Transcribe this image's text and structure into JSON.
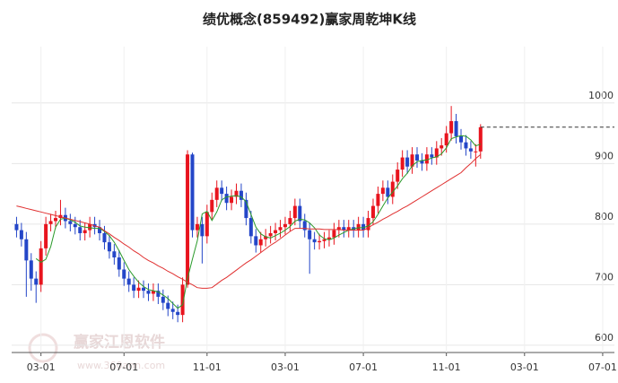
{
  "chart_data": {
    "type": "candlestick",
    "title": "绩优概念(859492)赢家周乾坤K线",
    "watermark": "赢家江恩软件",
    "watermark_url": "www.360ann.com",
    "up_color": "#e8141e",
    "down_color": "#2446c8",
    "grid": true,
    "ylim": [
      588,
      1093
    ],
    "yticks": [
      600,
      700,
      800,
      900,
      1000
    ],
    "xlim": [
      -1,
      122.4
    ],
    "xticks": [
      {
        "value": 5,
        "label": "03-01"
      },
      {
        "value": 22,
        "label": "07-01"
      },
      {
        "value": 39,
        "label": "11-01"
      },
      {
        "value": 55,
        "label": "03-01"
      },
      {
        "value": 71,
        "label": "07-01"
      },
      {
        "value": 88,
        "label": "11-01"
      },
      {
        "value": 104,
        "label": "03-01"
      },
      {
        "value": 120,
        "label": "07-01"
      }
    ],
    "open": [
      800,
      790,
      775,
      740,
      710,
      700,
      760,
      800,
      805,
      810,
      815,
      805,
      800,
      795,
      785,
      790,
      800,
      795,
      785,
      770,
      755,
      745,
      725,
      710,
      700,
      690,
      695,
      690,
      685,
      690,
      680,
      670,
      660,
      655,
      650,
      700,
      915,
      790,
      800,
      780,
      820,
      840,
      860,
      850,
      835,
      845,
      855,
      840,
      810,
      780,
      765,
      775,
      780,
      785,
      790,
      795,
      800,
      810,
      830,
      805,
      790,
      775,
      770,
      772,
      775,
      778,
      790,
      795,
      790,
      795,
      790,
      800,
      790,
      810,
      830,
      850,
      860,
      845,
      870,
      890,
      910,
      895,
      915,
      905,
      900,
      915,
      910,
      925,
      930,
      950,
      970,
      945,
      935,
      925,
      920,
      920
    ],
    "close": [
      790,
      775,
      740,
      710,
      700,
      760,
      800,
      805,
      810,
      815,
      805,
      800,
      795,
      785,
      790,
      800,
      795,
      785,
      770,
      755,
      745,
      725,
      710,
      700,
      690,
      695,
      690,
      685,
      690,
      680,
      670,
      660,
      655,
      650,
      700,
      915,
      790,
      800,
      780,
      820,
      840,
      860,
      850,
      835,
      845,
      855,
      840,
      810,
      780,
      765,
      775,
      780,
      785,
      790,
      795,
      800,
      810,
      830,
      805,
      790,
      775,
      770,
      772,
      775,
      778,
      790,
      795,
      790,
      795,
      790,
      800,
      790,
      810,
      830,
      850,
      860,
      845,
      870,
      890,
      910,
      895,
      915,
      905,
      900,
      915,
      910,
      925,
      930,
      950,
      970,
      945,
      935,
      925,
      920,
      920,
      960
    ],
    "high": [
      812,
      802,
      787,
      752,
      722,
      772,
      812,
      817,
      822,
      840,
      827,
      817,
      812,
      807,
      802,
      812,
      812,
      807,
      797,
      782,
      767,
      757,
      737,
      722,
      712,
      707,
      707,
      702,
      702,
      702,
      692,
      682,
      672,
      667,
      712,
      922,
      918,
      812,
      812,
      832,
      852,
      872,
      872,
      862,
      857,
      867,
      867,
      852,
      822,
      792,
      787,
      792,
      797,
      802,
      807,
      812,
      822,
      842,
      842,
      817,
      802,
      787,
      784,
      787,
      790,
      802,
      807,
      807,
      807,
      807,
      812,
      812,
      822,
      842,
      862,
      872,
      872,
      882,
      902,
      922,
      922,
      927,
      927,
      917,
      927,
      927,
      937,
      942,
      962,
      995,
      982,
      957,
      947,
      937,
      932,
      965
    ],
    "low": [
      778,
      763,
      680,
      690,
      670,
      688,
      748,
      788,
      793,
      798,
      793,
      788,
      783,
      773,
      773,
      778,
      783,
      773,
      758,
      743,
      733,
      713,
      698,
      688,
      678,
      678,
      678,
      673,
      673,
      668,
      658,
      648,
      643,
      638,
      638,
      695,
      778,
      778,
      735,
      768,
      808,
      828,
      838,
      823,
      823,
      833,
      828,
      798,
      768,
      753,
      753,
      763,
      768,
      773,
      778,
      783,
      788,
      798,
      793,
      778,
      718,
      758,
      758,
      760,
      763,
      766,
      778,
      778,
      778,
      778,
      778,
      778,
      778,
      798,
      818,
      838,
      833,
      833,
      858,
      878,
      883,
      883,
      893,
      888,
      888,
      898,
      898,
      913,
      918,
      938,
      933,
      923,
      913,
      908,
      895,
      908
    ],
    "series": [
      {
        "color": "#2a9a2a",
        "values": [
          null,
          null,
          null,
          null,
          743,
          737,
          742,
          763,
          795,
          808,
          810,
          807,
          803,
          797,
          795,
          794,
          793,
          793,
          788,
          781,
          770,
          756,
          740,
          725,
          714,
          704,
          697,
          692,
          690,
          688,
          683,
          677,
          669,
          661,
          667,
          710,
          742,
          772,
          817,
          821,
          806,
          820,
          840,
          845,
          846,
          847,
          845,
          837,
          816,
          795,
          784,
          779,
          777,
          781,
          785,
          790,
          796,
          805,
          808,
          807,
          802,
          794,
          782,
          776,
          774,
          777,
          782,
          786,
          790,
          792,
          794,
          794,
          797,
          804,
          816,
          830,
          843,
          853,
          863,
          875,
          884,
          896,
          903,
          905,
          906,
          909,
          911,
          916,
          926,
          941,
          944,
          946,
          945,
          939,
          929,
          932
        ]
      },
      {
        "color": "#e03030",
        "values": [
          830,
          828,
          826,
          824,
          822,
          820,
          818,
          816,
          814,
          812,
          810,
          808,
          806,
          804,
          802,
          800,
          797,
          795,
          789,
          784,
          778,
          773,
          767,
          762,
          756,
          751,
          745,
          740,
          736,
          731,
          727,
          722,
          718,
          713,
          709,
          704,
          700,
          695,
          694,
          694,
          695,
          701,
          707,
          712,
          718,
          724,
          730,
          736,
          741,
          747,
          753,
          759,
          765,
          770,
          776,
          782,
          788,
          793,
          793,
          793,
          792,
          792,
          792,
          791,
          791,
          791,
          791,
          790,
          790,
          790,
          790,
          790,
          794,
          799,
          803,
          808,
          812,
          817,
          821,
          826,
          830,
          835,
          840,
          845,
          850,
          855,
          860,
          865,
          870,
          875,
          880,
          885,
          893,
          900,
          908,
          915
        ]
      }
    ]
  }
}
